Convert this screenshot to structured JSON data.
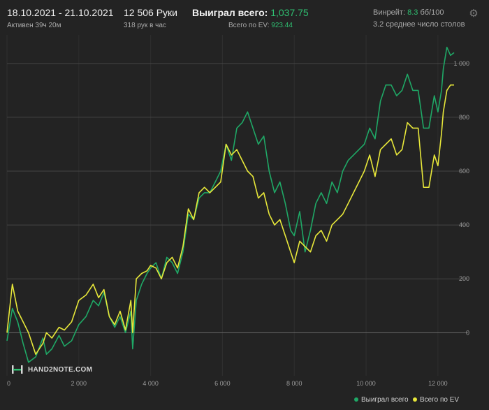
{
  "header": {
    "date_range": "18.10.2021 - 21.10.2021",
    "active_time": "Активен 39ч 20м",
    "hands": "12 506 Руки",
    "hands_per_hour": "318 рук в час",
    "won_total_label": "Выиграл всего:",
    "won_total_value": "1,037.75",
    "ev_total_label": "Всего по EV:",
    "ev_total_value": "923.44",
    "winrate_label": "Винрейт:",
    "winrate_value": "8.3",
    "winrate_unit": "бб/100",
    "tables_info": "3.2 среднее число столов",
    "settings_icon": "gear-icon"
  },
  "logo": {
    "text": "HAND2NOTE.COM"
  },
  "colors": {
    "won": "#1fa866",
    "ev": "#e8e83a",
    "accent_green": "#2fbf71"
  },
  "chart_data": {
    "type": "line",
    "xlim": [
      0,
      12450
    ],
    "ylim": [
      -160,
      1080
    ],
    "x_ticks": [
      0,
      2000,
      4000,
      6000,
      8000,
      10000,
      12000
    ],
    "x_tick_labels": [
      "0",
      "2 000",
      "4 000",
      "6 000",
      "8 000",
      "10 000",
      "12 000"
    ],
    "y_ticks": [
      0,
      200,
      400,
      600,
      800,
      1000
    ],
    "y_tick_labels": [
      "0",
      "200",
      "400",
      "600",
      "800",
      "1 000"
    ],
    "grid": true,
    "legend": "bottom-right",
    "series": [
      {
        "name": "Выиграл всего",
        "x": [
          0,
          150,
          300,
          450,
          600,
          800,
          1000,
          1100,
          1250,
          1450,
          1600,
          1800,
          2000,
          2200,
          2400,
          2550,
          2700,
          2850,
          3000,
          3150,
          3300,
          3450,
          3500,
          3600,
          3750,
          3900,
          4000,
          4150,
          4300,
          4450,
          4600,
          4750,
          4900,
          5050,
          5200,
          5350,
          5500,
          5650,
          5800,
          5950,
          6100,
          6250,
          6400,
          6550,
          6700,
          6850,
          7000,
          7150,
          7300,
          7450,
          7600,
          7750,
          7900,
          8000,
          8150,
          8300,
          8450,
          8600,
          8750,
          8900,
          9050,
          9200,
          9350,
          9500,
          9650,
          9800,
          9950,
          10100,
          10250,
          10400,
          10550,
          10700,
          10850,
          11000,
          11150,
          11300,
          11450,
          11600,
          11750,
          11900,
          12000,
          12100,
          12150,
          12250,
          12350,
          12450
        ],
        "values": [
          -30,
          90,
          40,
          -40,
          -110,
          -90,
          -20,
          -80,
          -60,
          -10,
          -50,
          -30,
          30,
          60,
          120,
          100,
          150,
          60,
          20,
          60,
          0,
          80,
          -60,
          120,
          180,
          220,
          240,
          260,
          200,
          280,
          260,
          220,
          300,
          440,
          420,
          500,
          520,
          520,
          560,
          600,
          700,
          640,
          760,
          780,
          820,
          760,
          700,
          730,
          600,
          520,
          560,
          480,
          380,
          360,
          450,
          300,
          380,
          480,
          520,
          480,
          560,
          520,
          600,
          640,
          660,
          680,
          700,
          760,
          720,
          860,
          920,
          920,
          880,
          900,
          960,
          900,
          900,
          760,
          760,
          880,
          820,
          900,
          980,
          1060,
          1030,
          1040
        ]
      },
      {
        "name": "Всего по EV",
        "x": [
          0,
          150,
          300,
          450,
          600,
          800,
          1000,
          1100,
          1250,
          1450,
          1600,
          1800,
          2000,
          2200,
          2400,
          2550,
          2700,
          2850,
          3000,
          3150,
          3300,
          3450,
          3500,
          3600,
          3750,
          3900,
          4000,
          4150,
          4300,
          4450,
          4600,
          4750,
          4900,
          5050,
          5200,
          5350,
          5500,
          5650,
          5800,
          5950,
          6100,
          6250,
          6400,
          6550,
          6700,
          6850,
          7000,
          7150,
          7300,
          7450,
          7600,
          7750,
          7900,
          8000,
          8150,
          8300,
          8450,
          8600,
          8750,
          8900,
          9050,
          9200,
          9350,
          9500,
          9650,
          9800,
          9950,
          10100,
          10250,
          10400,
          10550,
          10700,
          10850,
          11000,
          11150,
          11300,
          11450,
          11600,
          11750,
          11900,
          12000,
          12100,
          12150,
          12250,
          12350,
          12450
        ],
        "values": [
          0,
          180,
          80,
          40,
          0,
          -80,
          -40,
          0,
          -20,
          20,
          10,
          40,
          120,
          140,
          180,
          130,
          160,
          60,
          30,
          80,
          10,
          120,
          0,
          200,
          220,
          230,
          250,
          240,
          200,
          260,
          280,
          240,
          320,
          460,
          420,
          520,
          540,
          520,
          540,
          560,
          700,
          660,
          680,
          640,
          600,
          580,
          500,
          520,
          440,
          400,
          420,
          360,
          300,
          260,
          340,
          320,
          300,
          360,
          380,
          340,
          400,
          420,
          440,
          480,
          520,
          560,
          600,
          660,
          580,
          680,
          700,
          720,
          660,
          680,
          780,
          760,
          760,
          540,
          540,
          660,
          620,
          740,
          820,
          900,
          920,
          920
        ]
      }
    ]
  }
}
